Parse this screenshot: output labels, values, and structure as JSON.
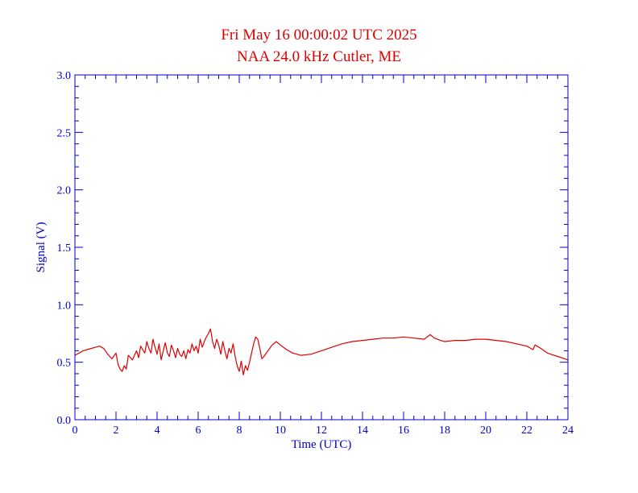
{
  "chart_data": {
    "type": "line",
    "title": "Fri May 16 00:00:02 UTC 2025",
    "subtitle": "NAA 24.0 kHz Cutler, ME",
    "xlabel": "Time (UTC)",
    "ylabel": "Signal (V)",
    "xlim": [
      0,
      24
    ],
    "ylim": [
      0.0,
      3.0
    ],
    "x_ticks": [
      "0",
      "2",
      "4",
      "6",
      "8",
      "10",
      "12",
      "14",
      "16",
      "18",
      "20",
      "22",
      "24"
    ],
    "y_ticks": [
      "0.0",
      "0.5",
      "1.0",
      "1.5",
      "2.0",
      "2.5",
      "3.0"
    ],
    "x_minor_step": 0.5,
    "y_minor_step": 0.1,
    "grid": false,
    "series": [
      {
        "color": "#dd0000",
        "x": [
          0.0,
          0.2,
          0.4,
          0.6,
          0.8,
          1.0,
          1.2,
          1.4,
          1.6,
          1.8,
          2.0,
          2.1,
          2.2,
          2.3,
          2.4,
          2.5,
          2.6,
          2.8,
          3.0,
          3.1,
          3.2,
          3.4,
          3.5,
          3.6,
          3.7,
          3.8,
          3.9,
          4.0,
          4.1,
          4.2,
          4.3,
          4.4,
          4.5,
          4.6,
          4.7,
          4.8,
          4.9,
          5.0,
          5.1,
          5.2,
          5.3,
          5.4,
          5.5,
          5.6,
          5.7,
          5.8,
          5.9,
          6.0,
          6.1,
          6.2,
          6.3,
          6.4,
          6.5,
          6.6,
          6.7,
          6.8,
          6.9,
          7.0,
          7.1,
          7.2,
          7.3,
          7.4,
          7.5,
          7.6,
          7.7,
          7.8,
          7.9,
          8.0,
          8.1,
          8.2,
          8.3,
          8.4,
          8.5,
          8.6,
          8.7,
          8.8,
          8.9,
          9.0,
          9.1,
          9.2,
          9.4,
          9.6,
          9.8,
          10.0,
          10.3,
          10.6,
          11.0,
          11.5,
          12.0,
          12.5,
          13.0,
          13.5,
          14.0,
          14.5,
          15.0,
          15.5,
          16.0,
          16.5,
          17.0,
          17.3,
          17.5,
          17.8,
          18.0,
          18.5,
          19.0,
          19.5,
          20.0,
          20.5,
          21.0,
          21.5,
          22.0,
          22.3,
          22.4,
          22.6,
          23.0,
          23.5,
          24.0
        ],
        "values": [
          0.56,
          0.58,
          0.6,
          0.61,
          0.62,
          0.63,
          0.64,
          0.62,
          0.57,
          0.53,
          0.58,
          0.48,
          0.44,
          0.42,
          0.47,
          0.44,
          0.56,
          0.52,
          0.6,
          0.54,
          0.64,
          0.58,
          0.68,
          0.62,
          0.58,
          0.7,
          0.63,
          0.57,
          0.66,
          0.52,
          0.6,
          0.67,
          0.58,
          0.55,
          0.65,
          0.6,
          0.54,
          0.62,
          0.57,
          0.55,
          0.6,
          0.53,
          0.61,
          0.58,
          0.66,
          0.6,
          0.64,
          0.58,
          0.7,
          0.63,
          0.68,
          0.72,
          0.75,
          0.79,
          0.68,
          0.62,
          0.7,
          0.65,
          0.57,
          0.68,
          0.6,
          0.53,
          0.62,
          0.58,
          0.66,
          0.55,
          0.47,
          0.42,
          0.51,
          0.39,
          0.47,
          0.43,
          0.5,
          0.58,
          0.66,
          0.72,
          0.7,
          0.62,
          0.53,
          0.55,
          0.6,
          0.65,
          0.68,
          0.65,
          0.61,
          0.58,
          0.56,
          0.57,
          0.6,
          0.63,
          0.66,
          0.68,
          0.69,
          0.7,
          0.71,
          0.71,
          0.72,
          0.71,
          0.7,
          0.74,
          0.71,
          0.69,
          0.68,
          0.69,
          0.69,
          0.7,
          0.7,
          0.69,
          0.68,
          0.66,
          0.64,
          0.61,
          0.65,
          0.63,
          0.58,
          0.55,
          0.52
        ]
      }
    ]
  },
  "colors": {
    "title": "#dd0000",
    "axes": "#0000cc",
    "series": "#dd0000"
  }
}
